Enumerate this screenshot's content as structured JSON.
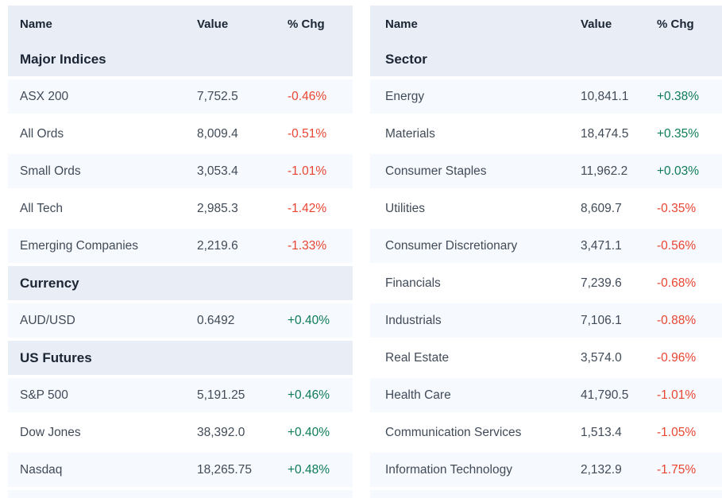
{
  "colors": {
    "header_bg": "#e8edf6",
    "row_alt_bg": "#f6f9fd",
    "header_text": "#1b2533",
    "row_text": "#414b58",
    "positive": "#0e7c57",
    "negative": "#e94532"
  },
  "tables": [
    {
      "id": "markets",
      "columns": [
        "Name",
        "Value",
        "% Chg"
      ],
      "sections": [
        {
          "title": "Major Indices",
          "rows": [
            {
              "name": "ASX 200",
              "value": "7,752.5",
              "change": "-0.46%",
              "direction": "down"
            },
            {
              "name": "All Ords",
              "value": "8,009.4",
              "change": "-0.51%",
              "direction": "down"
            },
            {
              "name": "Small Ords",
              "value": "3,053.4",
              "change": "-1.01%",
              "direction": "down"
            },
            {
              "name": "All Tech",
              "value": "2,985.3",
              "change": "-1.42%",
              "direction": "down"
            },
            {
              "name": "Emerging Companies",
              "value": "2,219.6",
              "change": "-1.33%",
              "direction": "down"
            }
          ]
        },
        {
          "title": "Currency",
          "rows": [
            {
              "name": "AUD/USD",
              "value": "0.6492",
              "change": "+0.40%",
              "direction": "up"
            }
          ]
        },
        {
          "title": "US Futures",
          "rows": [
            {
              "name": "S&P 500",
              "value": "5,191.25",
              "change": "+0.46%",
              "direction": "up"
            },
            {
              "name": "Dow Jones",
              "value": "38,392.0",
              "change": "+0.40%",
              "direction": "up"
            },
            {
              "name": "Nasdaq",
              "value": "18,265.75",
              "change": "+0.48%",
              "direction": "up"
            }
          ]
        }
      ]
    },
    {
      "id": "sectors",
      "columns": [
        "Name",
        "Value",
        "% Chg"
      ],
      "sections": [
        {
          "title": "Sector",
          "rows": [
            {
              "name": "Energy",
              "value": "10,841.1",
              "change": "+0.38%",
              "direction": "up"
            },
            {
              "name": "Materials",
              "value": "18,474.5",
              "change": "+0.35%",
              "direction": "up"
            },
            {
              "name": "Consumer Staples",
              "value": "11,962.2",
              "change": "+0.03%",
              "direction": "up"
            },
            {
              "name": "Utilities",
              "value": "8,609.7",
              "change": "-0.35%",
              "direction": "down"
            },
            {
              "name": "Consumer Discretionary",
              "value": "3,471.1",
              "change": "-0.56%",
              "direction": "down"
            },
            {
              "name": "Financials",
              "value": "7,239.6",
              "change": "-0.68%",
              "direction": "down"
            },
            {
              "name": "Industrials",
              "value": "7,106.1",
              "change": "-0.88%",
              "direction": "down"
            },
            {
              "name": "Real Estate",
              "value": "3,574.0",
              "change": "-0.96%",
              "direction": "down"
            },
            {
              "name": "Health Care",
              "value": "41,790.5",
              "change": "-1.01%",
              "direction": "down"
            },
            {
              "name": "Communication Services",
              "value": "1,513.4",
              "change": "-1.05%",
              "direction": "down"
            },
            {
              "name": "Information Technology",
              "value": "2,132.9",
              "change": "-1.75%",
              "direction": "down"
            }
          ]
        }
      ]
    }
  ]
}
